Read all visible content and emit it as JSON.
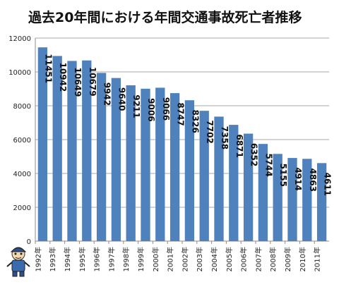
{
  "chart_data": {
    "type": "bar",
    "title": "過去20年間における年間交通事故死亡者推移",
    "xlabel": "",
    "ylabel": "",
    "ylim": [
      0,
      12000
    ],
    "yticks": [
      0,
      2000,
      4000,
      6000,
      8000,
      10000,
      12000
    ],
    "grid": true,
    "legend": "none",
    "bar_color": "#4f81bd",
    "categories": [
      "1992年",
      "1993年",
      "1994年",
      "1995年",
      "1996年",
      "1997年",
      "1998年",
      "1999年",
      "2000年",
      "2001年",
      "2002年",
      "2003年",
      "2004年",
      "2005年",
      "2006年",
      "2007年",
      "2008年",
      "2009年",
      "2010年",
      "2011年"
    ],
    "values": [
      11451,
      10942,
      10649,
      10679,
      9942,
      9640,
      9211,
      9006,
      9066,
      8747,
      8326,
      7702,
      7358,
      6871,
      6352,
      5744,
      5155,
      4914,
      4863,
      4611
    ]
  },
  "icons": {
    "mascot": "cartoon-character-icon"
  }
}
